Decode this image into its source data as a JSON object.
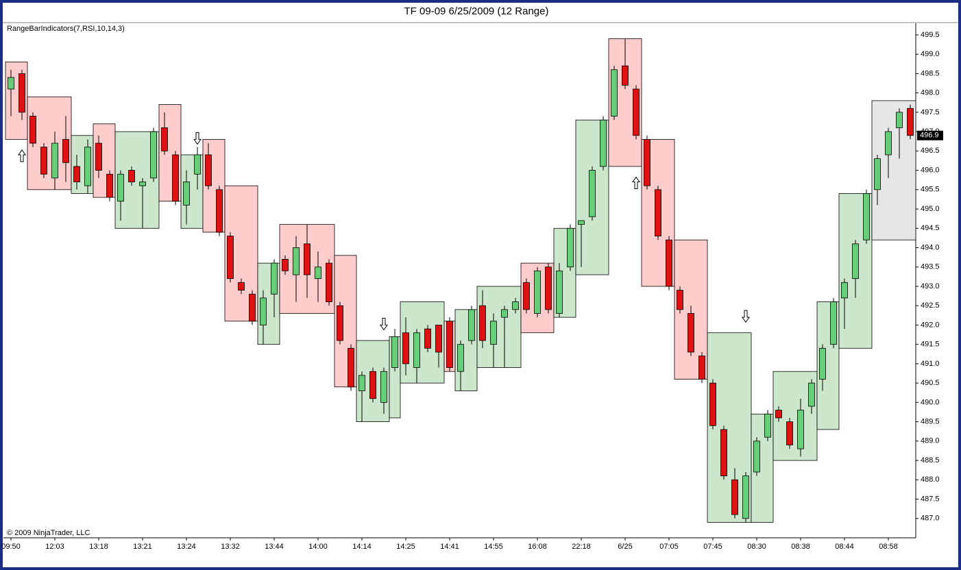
{
  "chart_data": {
    "type": "candlestick",
    "title": "TF 09-09  6/25/2009 (12 Range)",
    "indicator_label": "RangeBarIndicators(7,RSI,10,14,3)",
    "copyright": "© 2009 NinjaTrader, LLC",
    "categories": [
      "09:50",
      null,
      null,
      null,
      "12:03",
      null,
      null,
      null,
      "13:18",
      null,
      null,
      null,
      "13:21",
      null,
      null,
      null,
      "13:24",
      null,
      null,
      null,
      "13:32",
      null,
      null,
      null,
      "13:44",
      null,
      null,
      null,
      "14:00",
      null,
      null,
      null,
      "14:14",
      null,
      null,
      null,
      "14:25",
      null,
      null,
      null,
      "14:41",
      null,
      null,
      null,
      "14:55",
      null,
      null,
      null,
      "16:08",
      null,
      null,
      null,
      "22:18",
      null,
      null,
      null,
      "6/25",
      null,
      null,
      null,
      "07:05",
      null,
      null,
      null,
      "07:45",
      null,
      null,
      null,
      "08:30",
      null,
      null,
      null,
      "08:38",
      null,
      null,
      null,
      "08:44",
      null,
      null,
      null,
      "08:58",
      null,
      null
    ],
    "open": [
      498.1,
      498.5,
      497.4,
      496.6,
      495.8,
      496.8,
      496.1,
      495.6,
      496.7,
      495.9,
      495.2,
      496.0,
      495.6,
      495.8,
      497.1,
      496.4,
      495.1,
      495.9,
      496.4,
      495.5,
      494.3,
      493.1,
      492.8,
      492.0,
      492.8,
      493.7,
      493.3,
      494.1,
      493.2,
      493.6,
      492.5,
      491.4,
      490.3,
      490.8,
      490.0,
      490.9,
      491.8,
      490.9,
      491.9,
      492.0,
      492.1,
      490.8,
      491.6,
      492.5,
      491.5,
      492.2,
      492.4,
      493.1,
      492.3,
      493.5,
      492.3,
      493.5,
      494.6,
      494.8,
      496.1,
      497.4,
      498.7,
      498.1,
      496.8,
      495.5,
      494.2,
      492.9,
      492.3,
      491.2,
      490.5,
      489.3,
      488.0,
      487.0,
      488.2,
      489.1,
      489.8,
      489.5,
      488.8,
      489.9,
      490.6,
      491.5,
      492.7,
      493.2,
      494.2,
      495.5,
      496.4,
      497.1,
      497.6
    ],
    "high": [
      498.6,
      498.6,
      497.5,
      496.7,
      497.0,
      497.4,
      496.4,
      496.8,
      496.9,
      496.0,
      496.0,
      496.1,
      495.8,
      497.1,
      497.5,
      496.5,
      496.0,
      496.6,
      496.7,
      495.6,
      494.4,
      493.2,
      492.9,
      492.9,
      493.7,
      493.8,
      494.3,
      494.6,
      493.9,
      493.7,
      492.6,
      491.5,
      490.8,
      490.9,
      490.9,
      491.9,
      492.2,
      491.9,
      492.0,
      492.0,
      492.2,
      491.6,
      492.5,
      492.9,
      492.3,
      492.5,
      492.7,
      493.2,
      493.5,
      493.6,
      493.6,
      494.6,
      494.7,
      496.1,
      497.4,
      498.7,
      499.4,
      498.2,
      496.9,
      495.6,
      494.3,
      493.0,
      492.5,
      491.3,
      490.6,
      489.4,
      488.3,
      488.2,
      489.1,
      489.8,
      489.9,
      489.6,
      490.1,
      490.6,
      491.5,
      492.7,
      493.2,
      494.2,
      495.5,
      496.4,
      497.1,
      497.6,
      497.7
    ],
    "low": [
      497.4,
      497.3,
      496.6,
      495.8,
      495.5,
      495.7,
      495.5,
      495.4,
      495.8,
      495.2,
      494.7,
      495.6,
      494.5,
      495.7,
      496.4,
      495.1,
      494.6,
      495.5,
      495.5,
      494.3,
      493.1,
      492.8,
      492.0,
      491.5,
      492.2,
      493.3,
      492.6,
      492.7,
      492.6,
      492.5,
      491.5,
      490.3,
      489.5,
      490.0,
      489.7,
      490.8,
      490.7,
      490.5,
      491.3,
      490.9,
      490.8,
      490.3,
      491.5,
      491.4,
      490.9,
      490.9,
      492.3,
      492.3,
      492.2,
      492.3,
      492.2,
      493.4,
      493.5,
      494.7,
      496.0,
      497.3,
      498.1,
      496.8,
      495.5,
      494.2,
      492.9,
      492.3,
      491.2,
      490.5,
      489.3,
      488.0,
      487.0,
      486.9,
      488.1,
      489.0,
      489.5,
      488.8,
      488.6,
      489.7,
      490.3,
      491.4,
      491.9,
      492.7,
      494.1,
      495.1,
      495.8,
      496.3,
      496.8
    ],
    "close": [
      498.4,
      497.5,
      496.7,
      495.9,
      496.7,
      496.2,
      495.7,
      496.6,
      496.0,
      495.3,
      495.9,
      495.7,
      495.7,
      497.0,
      496.5,
      495.2,
      495.7,
      496.4,
      495.6,
      494.4,
      493.2,
      492.9,
      492.1,
      492.7,
      493.6,
      493.4,
      494.0,
      493.3,
      493.5,
      492.6,
      491.6,
      490.4,
      490.7,
      490.1,
      490.8,
      491.7,
      491.0,
      491.8,
      491.4,
      491.3,
      490.9,
      491.5,
      492.4,
      491.6,
      492.1,
      492.4,
      492.6,
      492.4,
      493.4,
      492.4,
      493.4,
      494.5,
      494.7,
      496.0,
      497.3,
      498.6,
      498.2,
      496.9,
      495.6,
      494.3,
      493.0,
      492.4,
      491.3,
      490.6,
      489.4,
      488.1,
      487.1,
      488.1,
      489.0,
      489.7,
      489.6,
      488.9,
      489.8,
      490.5,
      491.4,
      492.6,
      493.1,
      494.1,
      495.4,
      496.3,
      497.0,
      497.5,
      496.9
    ],
    "up_color": "#66cc77",
    "down_color": "#dd1111",
    "boxes": [
      {
        "start": 0,
        "end": 1,
        "high": 498.8,
        "low": 496.8,
        "color": "#ffcccc"
      },
      {
        "start": 2,
        "end": 5,
        "high": 497.9,
        "low": 495.5,
        "color": "#ffcccc"
      },
      {
        "start": 6,
        "end": 7,
        "high": 496.9,
        "low": 495.4,
        "color": "#cce6cc"
      },
      {
        "start": 8,
        "end": 9,
        "high": 497.2,
        "low": 495.3,
        "color": "#ffcccc"
      },
      {
        "start": 10,
        "end": 13,
        "high": 497.0,
        "low": 494.5,
        "color": "#cce6cc"
      },
      {
        "start": 14,
        "end": 15,
        "high": 497.7,
        "low": 495.2,
        "color": "#ffcccc"
      },
      {
        "start": 16,
        "end": 17,
        "high": 496.4,
        "low": 494.5,
        "color": "#cce6cc"
      },
      {
        "start": 18,
        "end": 19,
        "high": 496.8,
        "low": 494.4,
        "color": "#ffcccc"
      },
      {
        "start": 20,
        "end": 22,
        "high": 495.6,
        "low": 492.1,
        "color": "#ffcccc"
      },
      {
        "start": 23,
        "end": 24,
        "high": 493.6,
        "low": 491.5,
        "color": "#cce6cc"
      },
      {
        "start": 25,
        "end": 29,
        "high": 494.6,
        "low": 492.3,
        "color": "#ffcccc"
      },
      {
        "start": 30,
        "end": 31,
        "high": 493.8,
        "low": 490.4,
        "color": "#ffcccc"
      },
      {
        "start": 32,
        "end": 34,
        "high": 491.6,
        "low": 489.5,
        "color": "#cce6cc"
      },
      {
        "start": 35,
        "end": 35,
        "high": 491.7,
        "low": 489.6,
        "color": "#cce6cc"
      },
      {
        "start": 36,
        "end": 39,
        "high": 492.6,
        "low": 490.5,
        "color": "#cce6cc"
      },
      {
        "start": 40,
        "end": 40,
        "high": 492.1,
        "low": 490.8,
        "color": "#ffcccc"
      },
      {
        "start": 41,
        "end": 42,
        "high": 492.4,
        "low": 490.3,
        "color": "#cce6cc"
      },
      {
        "start": 43,
        "end": 46,
        "high": 493.0,
        "low": 490.9,
        "color": "#cce6cc"
      },
      {
        "start": 47,
        "end": 49,
        "high": 493.6,
        "low": 491.8,
        "color": "#ffcccc"
      },
      {
        "start": 50,
        "end": 51,
        "high": 494.5,
        "low": 492.2,
        "color": "#cce6cc"
      },
      {
        "start": 52,
        "end": 54,
        "high": 497.3,
        "low": 493.3,
        "color": "#cce6cc"
      },
      {
        "start": 55,
        "end": 57,
        "high": 499.4,
        "low": 496.1,
        "color": "#ffcccc"
      },
      {
        "start": 58,
        "end": 60,
        "high": 496.8,
        "low": 493.0,
        "color": "#ffcccc"
      },
      {
        "start": 61,
        "end": 63,
        "high": 494.2,
        "low": 490.6,
        "color": "#ffcccc"
      },
      {
        "start": 64,
        "end": 67,
        "high": 491.8,
        "low": 486.9,
        "color": "#cce6cc"
      },
      {
        "start": 68,
        "end": 69,
        "high": 489.7,
        "low": 486.9,
        "color": "#cce6cc"
      },
      {
        "start": 70,
        "end": 73,
        "high": 490.8,
        "low": 488.5,
        "color": "#cce6cc"
      },
      {
        "start": 74,
        "end": 75,
        "high": 492.6,
        "low": 489.3,
        "color": "#cce6cc"
      },
      {
        "start": 76,
        "end": 78,
        "high": 495.4,
        "low": 491.4,
        "color": "#cce6cc"
      },
      {
        "start": 79,
        "end": 82,
        "high": 497.8,
        "low": 494.2,
        "color": "#e6e6e6"
      }
    ],
    "arrows": [
      {
        "index": 1,
        "value": 496.4,
        "direction": "up"
      },
      {
        "index": 17,
        "value": 496.8,
        "direction": "down"
      },
      {
        "index": 34,
        "value": 492.0,
        "direction": "down"
      },
      {
        "index": 57,
        "value": 495.7,
        "direction": "up"
      },
      {
        "index": 67,
        "value": 492.2,
        "direction": "down"
      }
    ],
    "ylim": [
      486.5,
      499.8
    ],
    "yticks": [
      {
        "value": 487,
        "label": "487.0"
      },
      {
        "value": 487.5,
        "label": "487.5"
      },
      {
        "value": 488,
        "label": "488.0"
      },
      {
        "value": 488.5,
        "label": "488.5"
      },
      {
        "value": 489,
        "label": "489.0"
      },
      {
        "value": 489.5,
        "label": "489.5"
      },
      {
        "value": 490,
        "label": "490.0"
      },
      {
        "value": 490.5,
        "label": "490.5"
      },
      {
        "value": 491,
        "label": "491.0"
      },
      {
        "value": 491.5,
        "label": "491.5"
      },
      {
        "value": 492,
        "label": "492.0"
      },
      {
        "value": 492.5,
        "label": "492.5"
      },
      {
        "value": 493,
        "label": "493.0"
      },
      {
        "value": 493.5,
        "label": "493.5"
      },
      {
        "value": 494,
        "label": "494.0"
      },
      {
        "value": 494.5,
        "label": "494.5"
      },
      {
        "value": 495,
        "label": "495.0"
      },
      {
        "value": 495.5,
        "label": "495.5"
      },
      {
        "value": 496,
        "label": "496.0"
      },
      {
        "value": 496.5,
        "label": "496.5"
      },
      {
        "value": 497,
        "label": "497.0"
      },
      {
        "value": 497.5,
        "label": "497.5"
      },
      {
        "value": 498,
        "label": "498.0"
      },
      {
        "value": 498.5,
        "label": "498.5"
      },
      {
        "value": 499,
        "label": "499.0"
      },
      {
        "value": 499.5,
        "label": "499.5"
      }
    ]
  }
}
